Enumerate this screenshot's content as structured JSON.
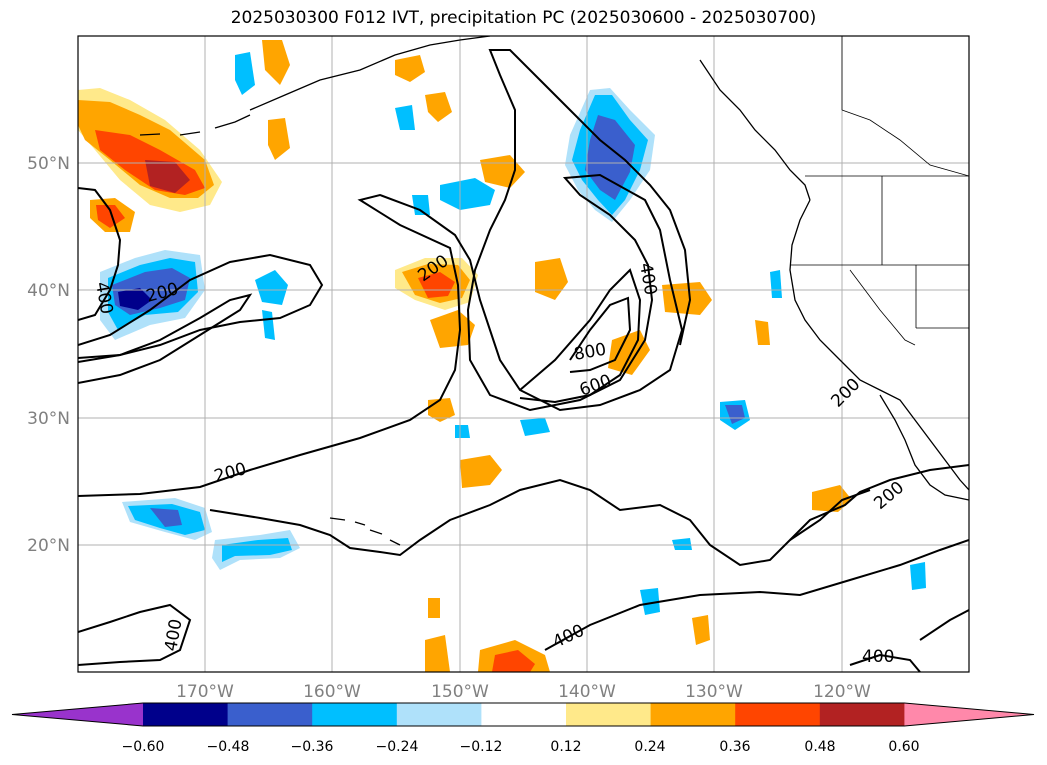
{
  "title": "2025030300 F012 IVT, precipitation PC (2025030600 - 2025030700)",
  "map": {
    "latitude_labels": [
      "50°N",
      "40°N",
      "30°N",
      "20°N"
    ],
    "longitude_labels": [
      "170°W",
      "160°W",
      "150°W",
      "140°W",
      "130°W",
      "120°W"
    ],
    "contour_labels": [
      "400",
      "200",
      "200",
      "400",
      "800",
      "600",
      "200",
      "200",
      "200",
      "400",
      "400",
      "400"
    ],
    "contour_color": "#000000",
    "grid_color": "#b0b0b0"
  },
  "colorbar": {
    "ticks": [
      "−0.60",
      "−0.48",
      "−0.36",
      "−0.24",
      "−0.12",
      "0.12",
      "0.24",
      "0.36",
      "0.48",
      "0.60"
    ],
    "colors": [
      "#9933cc",
      "#00008b",
      "#3a5fcd",
      "#00bfff",
      "#afe1fa",
      "#ffffff",
      "#ffe98a",
      "#ffa500",
      "#ff4500",
      "#b22222",
      "#ff88aa"
    ]
  },
  "colors": {
    "neg_strong": "#00008b",
    "neg_mid": "#3a5fcd",
    "neg": "#00bfff",
    "neg_light": "#afe1fa",
    "pos_light": "#ffe98a",
    "pos": "#ffa500",
    "pos_mid": "#ff4500",
    "pos_strong": "#b22222"
  }
}
